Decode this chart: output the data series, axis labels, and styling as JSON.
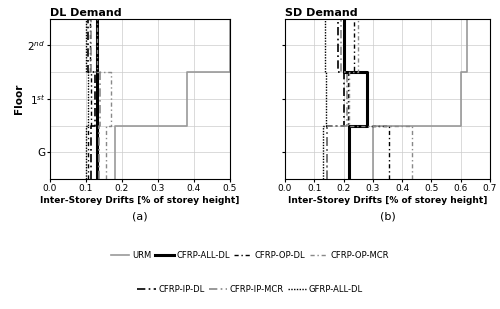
{
  "title_a": "DL Demand",
  "title_b": "SD Demand",
  "xlabel": "Inter-Storey Drifts [% of storey height]",
  "label_a": "(a)",
  "label_b": "(b)",
  "xlim_a": [
    0.0,
    0.5
  ],
  "xlim_b": [
    0.0,
    0.7
  ],
  "xticks_a": [
    0.0,
    0.1,
    0.2,
    0.3,
    0.4,
    0.5
  ],
  "xticks_b": [
    0.0,
    0.1,
    0.2,
    0.3,
    0.4,
    0.5,
    0.6,
    0.7
  ],
  "series_a": {
    "URM": [
      0.18,
      0.38,
      0.5
    ],
    "CFRP-ALL-DL": [
      0.13,
      0.13,
      0.13
    ],
    "CFRP-OP-DL": [
      0.105,
      0.115,
      0.11
    ],
    "CFRP-OP-MCR": [
      0.155,
      0.17,
      0.13
    ],
    "CFRP-IP-DL": [
      0.115,
      0.125,
      0.105
    ],
    "CFRP-IP-MCR": [
      0.135,
      0.14,
      0.115
    ],
    "GFRP-ALL-DL": [
      0.1,
      0.105,
      0.1
    ]
  },
  "series_b": {
    "URM": [
      0.3,
      0.6,
      0.62
    ],
    "CFRP-ALL-DL": [
      0.22,
      0.28,
      0.2
    ],
    "CFRP-OP-DL": [
      0.355,
      0.215,
      0.235
    ],
    "CFRP-OP-MCR": [
      0.435,
      0.22,
      0.25
    ],
    "CFRP-IP-DL": [
      0.145,
      0.2,
      0.18
    ],
    "CFRP-IP-MCR": [
      0.145,
      0.21,
      0.19
    ],
    "GFRP-ALL-DL": [
      0.13,
      0.14,
      0.135
    ]
  },
  "line_styles": {
    "URM": {
      "color": "#999999",
      "lw": 1.2
    },
    "CFRP-ALL-DL": {
      "color": "#000000",
      "lw": 2.2
    },
    "CFRP-OP-DL": {
      "color": "#000000",
      "lw": 1.0
    },
    "CFRP-OP-MCR": {
      "color": "#888888",
      "lw": 1.0
    },
    "CFRP-IP-DL": {
      "color": "#000000",
      "lw": 1.2
    },
    "CFRP-IP-MCR": {
      "color": "#888888",
      "lw": 1.2
    },
    "GFRP-ALL-DL": {
      "color": "#000000",
      "lw": 1.0
    }
  },
  "line_dashes": {
    "URM": null,
    "CFRP-ALL-DL": null,
    "CFRP-OP-DL": [
      3,
      2,
      1,
      2
    ],
    "CFRP-OP-MCR": [
      3,
      2,
      1,
      2
    ],
    "CFRP-IP-DL": [
      5,
      2,
      1,
      2
    ],
    "CFRP-IP-MCR": [
      5,
      2,
      1,
      2
    ],
    "GFRP-ALL-DL": [
      1,
      1,
      1,
      1
    ]
  },
  "series_order": [
    "URM",
    "CFRP-ALL-DL",
    "CFRP-OP-DL",
    "CFRP-OP-MCR",
    "CFRP-IP-DL",
    "CFRP-IP-MCR",
    "GFRP-ALL-DL"
  ],
  "legend": [
    {
      "label": "URM",
      "color": "#999999",
      "lw": 1.2,
      "dashes": null
    },
    {
      "label": "CFRP-ALL-DL",
      "color": "#000000",
      "lw": 2.2,
      "dashes": null
    },
    {
      "label": "CFRP-OP-DL",
      "color": "#000000",
      "lw": 1.0,
      "dashes": [
        3,
        2,
        1,
        2
      ]
    },
    {
      "label": "CFRP-OP-MCR",
      "color": "#888888",
      "lw": 1.0,
      "dashes": [
        3,
        2,
        1,
        2
      ]
    },
    {
      "label": "CFRP-IP-DL",
      "color": "#000000",
      "lw": 1.2,
      "dashes": [
        5,
        2,
        1,
        2
      ]
    },
    {
      "label": "CFRP-IP-MCR",
      "color": "#888888",
      "lw": 1.2,
      "dashes": [
        5,
        2,
        1,
        2
      ]
    },
    {
      "label": "GFRP-ALL-DL",
      "color": "#000000",
      "lw": 1.0,
      "dashes": [
        1,
        1,
        1,
        1
      ]
    }
  ]
}
